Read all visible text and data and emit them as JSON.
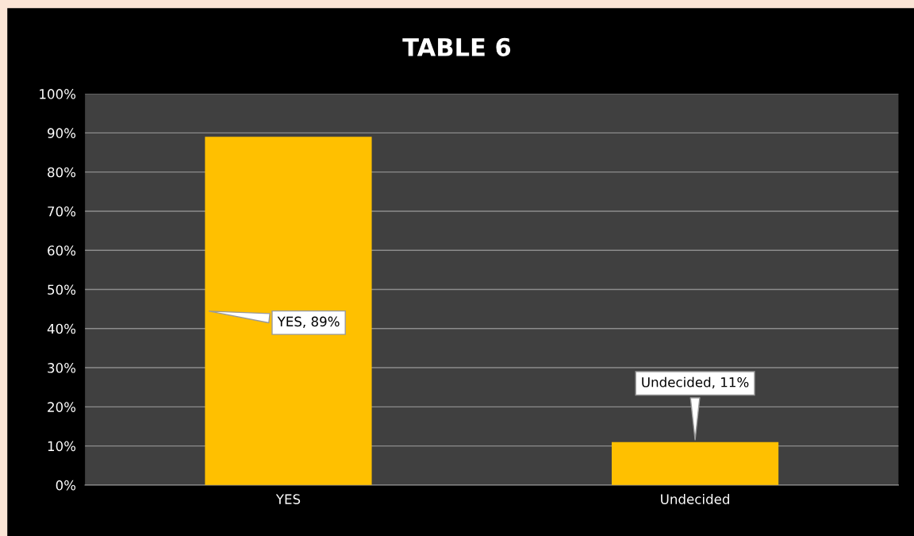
{
  "chart_data": {
    "type": "bar",
    "title": "TABLE 6",
    "categories": [
      "YES",
      "Undecided"
    ],
    "values": [
      89,
      11
    ],
    "value_labels": [
      "YES, 89%",
      "Undecided, 11%"
    ],
    "color": "#ffc000",
    "ylim": [
      0,
      100
    ],
    "yticks": [
      {
        "value": 0,
        "label": "0%"
      },
      {
        "value": 10,
        "label": "10%"
      },
      {
        "value": 20,
        "label": "20%"
      },
      {
        "value": 30,
        "label": "30%"
      },
      {
        "value": 40,
        "label": "40%"
      },
      {
        "value": 50,
        "label": "50%"
      },
      {
        "value": 60,
        "label": "60%"
      },
      {
        "value": 70,
        "label": "70%"
      },
      {
        "value": 80,
        "label": "80%"
      },
      {
        "value": 90,
        "label": "90%"
      },
      {
        "value": 100,
        "label": "100%"
      }
    ],
    "grid": "y"
  }
}
